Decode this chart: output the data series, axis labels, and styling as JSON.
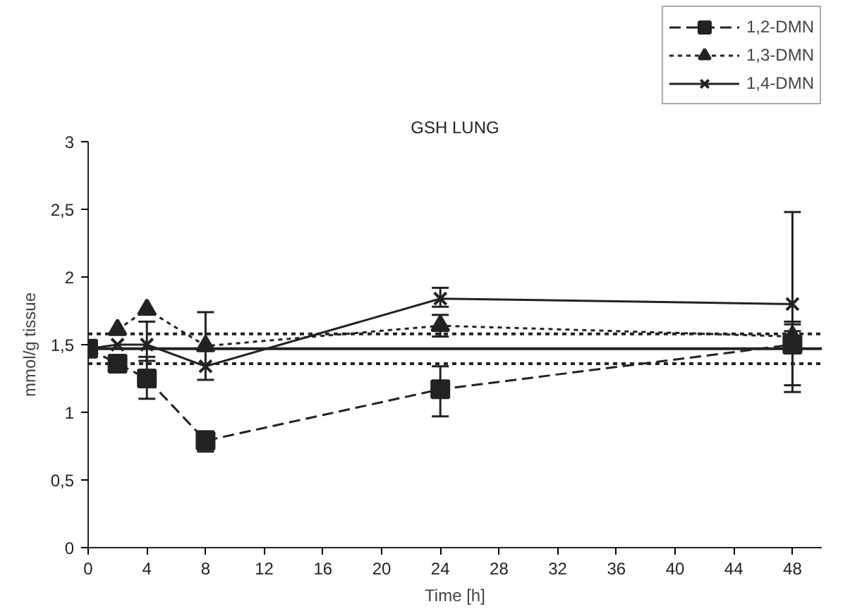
{
  "chart_data": {
    "type": "line",
    "title": "GSH LUNG",
    "xlabel": "Time [h]",
    "ylabel": "mmol/g tissue",
    "x": [
      0,
      2,
      4,
      8,
      24,
      48
    ],
    "series": [
      {
        "name": "1,2-DMN",
        "color": "#222222",
        "marker": "square",
        "line_style": "dashed",
        "values": [
          1.47,
          1.36,
          1.25,
          0.79,
          1.17,
          1.5
        ],
        "errors": [
          null,
          null,
          [
            1.1,
            1.41
          ],
          [
            0.71,
            0.86
          ],
          [
            0.97,
            1.34
          ],
          [
            1.2,
            1.65
          ]
        ]
      },
      {
        "name": "1,3-DMN",
        "color": "#222222",
        "marker": "triangle",
        "line_style": "dotted",
        "values": [
          null,
          1.61,
          1.76,
          1.49,
          1.64,
          1.56
        ],
        "errors": [
          null,
          null,
          null,
          null,
          [
            1.56,
            1.72
          ],
          [
            1.15,
            1.67
          ]
        ]
      },
      {
        "name": "1,4-DMN",
        "color": "#222222",
        "marker": "cross",
        "line_style": "solid",
        "values": [
          1.47,
          1.5,
          1.5,
          1.34,
          1.84,
          1.8
        ],
        "errors": [
          null,
          null,
          [
            1.38,
            1.67
          ],
          [
            1.24,
            1.74
          ],
          [
            1.78,
            1.92
          ],
          [
            1.6,
            2.48
          ]
        ]
      }
    ],
    "ref_lines": [
      {
        "axis": "y",
        "value": 1.47,
        "line_style": "solid",
        "color": "#222222"
      },
      {
        "axis": "y",
        "value": 1.58,
        "line_style": "dotted",
        "color": "#222222"
      },
      {
        "axis": "y",
        "value": 1.36,
        "line_style": "dotted",
        "color": "#222222"
      }
    ],
    "xlim": [
      0,
      50
    ],
    "xticks": [
      0,
      4,
      8,
      12,
      16,
      20,
      24,
      28,
      32,
      36,
      40,
      44,
      48
    ],
    "ylim": [
      0,
      3
    ],
    "yticks": [
      0,
      {
        "value": 0.5,
        "label": "0,5"
      },
      1,
      {
        "value": 1.5,
        "label": "1,5"
      },
      2,
      {
        "value": 2.5,
        "label": "2,5"
      },
      3
    ],
    "grid": false,
    "legend": "top right"
  }
}
